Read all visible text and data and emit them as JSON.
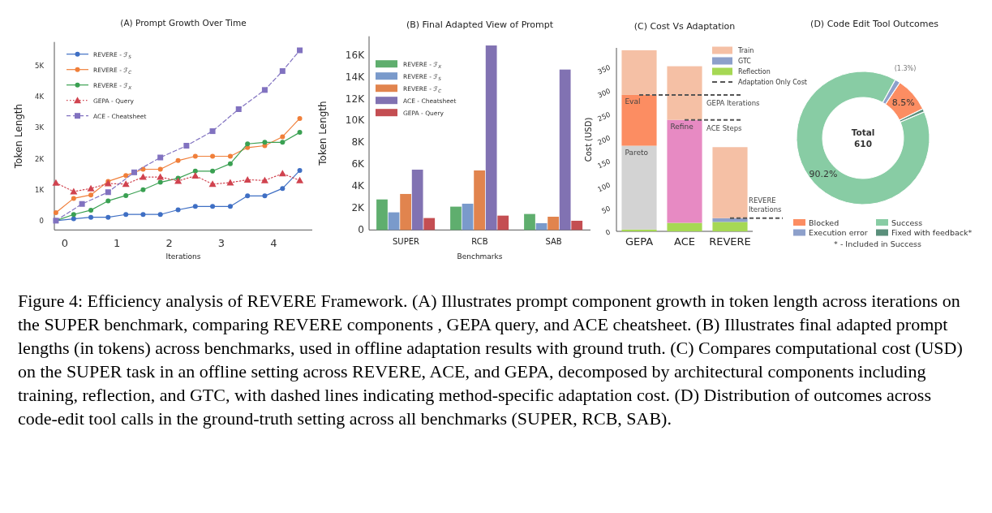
{
  "chart_data": [
    {
      "type": "line",
      "title": "(A) Prompt Growth Over Time",
      "xlabel": "Iterations",
      "ylabel": "Token Length",
      "xlim": [
        -0.2,
        4.74
      ],
      "xticks": [
        0,
        1,
        2,
        3,
        4
      ],
      "ylim": [
        -300,
        5770
      ],
      "yticks": [
        0,
        {
          "value": 1000,
          "label": "1K"
        },
        {
          "value": 2000,
          "label": "2K"
        },
        {
          "value": 3000,
          "label": "3K"
        },
        {
          "value": 4000,
          "label": "4K"
        },
        {
          "value": 5000,
          "label": "5K"
        }
      ],
      "legend": "top left",
      "series": [
        {
          "name": "REVERE - ℱ$_{S}$",
          "color": "#3f6fc4",
          "marker": "circle",
          "line_style": "solid",
          "x": [
            -0.17,
            0.17,
            0.5,
            0.83,
            1.17,
            1.5,
            1.83,
            2.17,
            2.5,
            2.83,
            3.17,
            3.5,
            3.83,
            4.17,
            4.5
          ],
          "values": [
            0,
            60,
            110,
            110,
            200,
            200,
            200,
            350,
            460,
            460,
            460,
            800,
            800,
            1040,
            1620
          ]
        },
        {
          "name": "REVERE - ℱ$_{C}$",
          "color": "#f07f3a",
          "marker": "circle",
          "line_style": "solid",
          "x": [
            -0.17,
            0.17,
            0.5,
            0.83,
            1.17,
            1.5,
            1.83,
            2.17,
            2.5,
            2.83,
            3.17,
            3.5,
            3.83,
            4.17,
            4.5
          ],
          "values": [
            260,
            720,
            830,
            1270,
            1460,
            1660,
            1660,
            1940,
            2080,
            2080,
            2080,
            2360,
            2420,
            2710,
            3300
          ]
        },
        {
          "name": "REVERE - ℱ$_{X}$",
          "color": "#3aa052",
          "marker": "circle",
          "line_style": "solid",
          "x": [
            -0.17,
            0.17,
            0.5,
            0.83,
            1.17,
            1.5,
            1.83,
            2.17,
            2.5,
            2.83,
            3.17,
            3.5,
            3.83,
            4.17,
            4.5
          ],
          "values": [
            0,
            200,
            340,
            640,
            810,
            1000,
            1240,
            1370,
            1600,
            1600,
            1840,
            2480,
            2530,
            2530,
            2850
          ]
        },
        {
          "name": "GEPA - Query",
          "color": "#d0434f",
          "marker": "triangle",
          "line_style": "dotted",
          "x": [
            -0.17,
            0.17,
            0.5,
            0.83,
            1.17,
            1.5,
            1.83,
            2.17,
            2.5,
            2.83,
            3.17,
            3.5,
            3.83,
            4.17,
            4.5
          ],
          "values": [
            1220,
            940,
            1040,
            1200,
            1180,
            1410,
            1410,
            1280,
            1450,
            1180,
            1230,
            1320,
            1300,
            1520,
            1300
          ]
        },
        {
          "name": "ACE - Cheatsheet",
          "color": "#8172c0",
          "marker": "square",
          "line_style": "dashed",
          "x": [
            -0.17,
            0.33,
            0.83,
            1.33,
            1.83,
            2.33,
            2.83,
            3.33,
            3.83,
            4.17,
            4.5
          ],
          "values": [
            0,
            540,
            920,
            1560,
            2040,
            2420,
            2890,
            3600,
            4220,
            4830,
            5500
          ]
        }
      ]
    },
    {
      "type": "bar",
      "title": "(B) Final Adapted View of Prompt",
      "xlabel": "Benchmarks",
      "ylabel": "Token Length",
      "categories": [
        "SUPER",
        "RCB",
        "SAB"
      ],
      "ylim": [
        0,
        17700
      ],
      "yticks": [
        0,
        {
          "value": 2000,
          "label": "2K"
        },
        {
          "value": 4000,
          "label": "4K"
        },
        {
          "value": 6000,
          "label": "6K"
        },
        {
          "value": 8000,
          "label": "8K"
        },
        {
          "value": 10000,
          "label": "10K"
        },
        {
          "value": 12000,
          "label": "12K"
        },
        {
          "value": 14000,
          "label": "14K"
        },
        {
          "value": 16000,
          "label": "16K"
        }
      ],
      "legend": "top left",
      "series": [
        {
          "name": "REVERE - ℱ$_{X}$",
          "color": "#5fae6e",
          "values": [
            2790,
            2130,
            1460
          ]
        },
        {
          "name": "REVERE - ℱ$_{S}$",
          "color": "#7a9acb",
          "values": [
            1610,
            2400,
            620
          ]
        },
        {
          "name": "REVERE - ℱ$_{C}$",
          "color": "#e1844e",
          "values": [
            3290,
            5440,
            1210
          ]
        },
        {
          "name": "ACE - Cheatsheet",
          "color": "#8172b2",
          "values": [
            5510,
            16860,
            14660
          ]
        },
        {
          "name": "GEPA - Query",
          "color": "#c44e52",
          "values": [
            1090,
            1310,
            840
          ]
        }
      ]
    },
    {
      "type": "bar",
      "stacked": true,
      "title": "(C) Cost Vs Adaptation",
      "ylabel": "Cost (USD)",
      "categories": [
        "GEPA",
        "ACE",
        "REVERE"
      ],
      "ylim": [
        0,
        390
      ],
      "yticks": [
        0,
        50,
        100,
        150,
        200,
        250,
        300,
        350
      ],
      "legend": "top right",
      "series": [
        {
          "name": "Reflection",
          "color": "#a6d854",
          "values": [
            4,
            18,
            20
          ]
        },
        {
          "name": "GTC",
          "color": "#8da0cb",
          "values": [
            null,
            null,
            8
          ]
        },
        {
          "name": "Pareto",
          "color": "#d3d3d3",
          "values": [
            178,
            null,
            null
          ]
        },
        {
          "name": "Eval",
          "color": "#fc8d62",
          "values": [
            108,
            null,
            null
          ]
        },
        {
          "name": "Refine",
          "color": "#e78ac3",
          "values": [
            null,
            219,
            null
          ]
        },
        {
          "name": "Train",
          "color": "#f5c0a5",
          "values": [
            95,
            114,
            151
          ]
        }
      ],
      "ref_lines": [
        {
          "axis": "y",
          "value": 290,
          "label": "GEPA Iterations",
          "color": "#555555",
          "line_style": "dashed"
        },
        {
          "axis": "y",
          "value": 237,
          "label": "ACE Steps",
          "color": "#555555",
          "line_style": "dashed"
        },
        {
          "axis": "y",
          "value": 28,
          "label": "REVERE Iterations",
          "color": "#555555",
          "line_style": "dashed"
        }
      ],
      "annotations": [
        "Adaptation Only Cost"
      ]
    },
    {
      "type": "donut",
      "title": "(D) Code Edit Tool Outcomes",
      "categories": [
        "Blocked",
        "Execution error",
        "Success",
        "Fixed with feedback*"
      ],
      "values": [
        8.5,
        1.3,
        90.2,
        0.8
      ],
      "colors": [
        "#fc8d62",
        "#8da0cb",
        "#88cca4",
        "#5a8f7b"
      ],
      "value_labels": [
        "8.5%",
        "(1.3%)",
        "90.2%",
        null
      ],
      "legend": "bottom",
      "annotations": [
        "Total\n610",
        "* - Included in Success",
        "Figure 4: Efficiency analysis of REVERE Framework. (A) Illustrates prompt component growth in token length across iterations on the SUPER benchmark, comparing REVERE components , GEPA query, and ACE cheatsheet. (B) Illustrates final adapted prompt lengths (in tokens) across benchmarks, used in offline adaptation results with ground truth. (C) Compares computational cost (USD) on the SUPER task in an offline setting across REVERE, ACE, and GEPA, decomposed by architectural components including training, reflection, and GTC, with dashed lines indicating method-specific adaptation cost. (D) Distribution of outcomes across code-edit tool calls in the ground-truth setting across all benchmarks (SUPER, RCB, SAB)."
      ]
    }
  ]
}
